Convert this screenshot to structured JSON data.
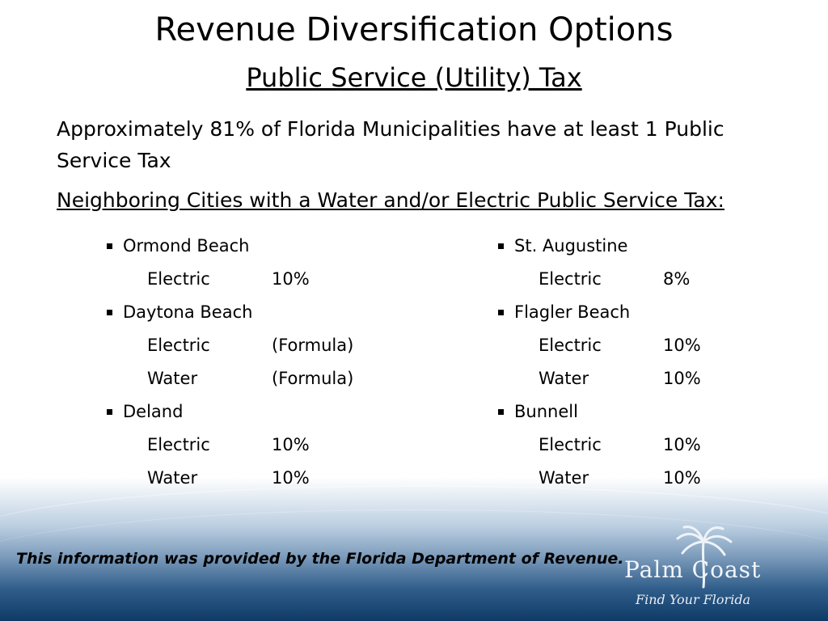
{
  "title": "Revenue Diversification Options",
  "subtitle": "Public Service (Utility) Tax",
  "intro": "Approximately 81% of Florida Municipalities have at least 1 Public Service Tax",
  "heading": "Neighboring Cities with a Water and/or Electric Public Service Tax:",
  "left_column": [
    {
      "city": "Ormond Beach",
      "taxes": [
        {
          "type": "Electric",
          "rate": "10%"
        }
      ]
    },
    {
      "city": "Daytona Beach",
      "taxes": [
        {
          "type": "Electric",
          "rate": "(Formula)"
        },
        {
          "type": "Water",
          "rate": "(Formula)"
        }
      ]
    },
    {
      "city": "Deland",
      "taxes": [
        {
          "type": "Electric",
          "rate": "10%"
        },
        {
          "type": "Water",
          "rate": "10%"
        }
      ]
    }
  ],
  "right_column": [
    {
      "city": "St. Augustine",
      "taxes": [
        {
          "type": "Electric",
          "rate": "8%"
        }
      ]
    },
    {
      "city": "Flagler Beach",
      "taxes": [
        {
          "type": "Electric",
          "rate": "10%"
        },
        {
          "type": "Water",
          "rate": "10%"
        }
      ]
    },
    {
      "city": "Bunnell",
      "taxes": [
        {
          "type": "Electric",
          "rate": "10%"
        },
        {
          "type": "Water",
          "rate": "10%"
        }
      ]
    }
  ],
  "footnote": "This information was provided by the Florida Department of Revenue.",
  "logo": {
    "brand": "Palm Coast",
    "tagline": "Find Your Florida",
    "icon": "palm-tree-icon"
  },
  "colors": {
    "band_dark": "#0f3a66",
    "band_light": "#b9cde0",
    "text": "#000000"
  }
}
